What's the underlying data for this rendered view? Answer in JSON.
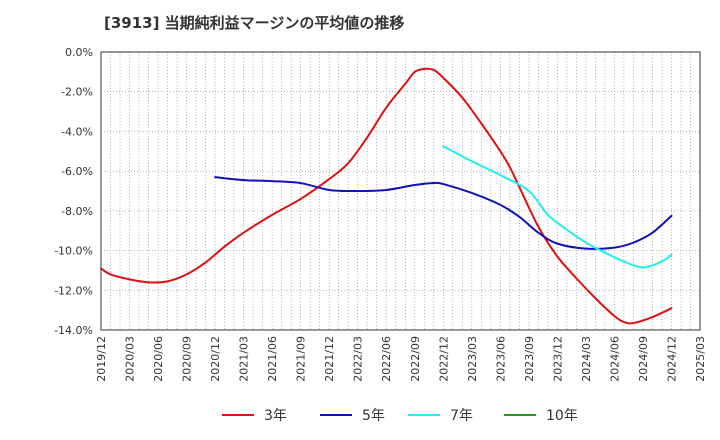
{
  "chart_data": {
    "type": "line",
    "title": "[3913]  当期純利益マージンの平均値の推移",
    "xlabel": "",
    "ylabel": "",
    "ylim": [
      -14,
      0
    ],
    "xlim": [
      "2019/12",
      "2025/03"
    ],
    "grid": true,
    "legend_position": "bottom",
    "y_ticks": [
      "0.0%",
      "-2.0%",
      "-4.0%",
      "-6.0%",
      "-8.0%",
      "-10.0%",
      "-12.0%",
      "-14.0%"
    ],
    "y_tick_values": [
      0,
      -2,
      -4,
      -6,
      -8,
      -10,
      -12,
      -14
    ],
    "x_ticks": [
      "2019/12",
      "2020/03",
      "2020/06",
      "2020/09",
      "2020/12",
      "2021/03",
      "2021/06",
      "2021/09",
      "2021/12",
      "2022/03",
      "2022/06",
      "2022/09",
      "2022/12",
      "2023/03",
      "2023/06",
      "2023/09",
      "2023/12",
      "2024/03",
      "2024/06",
      "2024/09",
      "2024/12",
      "2025/03"
    ],
    "series": [
      {
        "name": "3年",
        "color": "#dd1111",
        "points": [
          [
            "2019/12",
            -10.9
          ],
          [
            "2020/01",
            -11.2
          ],
          [
            "2020/03",
            -11.45
          ],
          [
            "2020/05",
            -11.6
          ],
          [
            "2020/07",
            -11.55
          ],
          [
            "2020/09",
            -11.2
          ],
          [
            "2020/11",
            -10.6
          ],
          [
            "2021/01",
            -9.8
          ],
          [
            "2021/03",
            -9.1
          ],
          [
            "2021/06",
            -8.2
          ],
          [
            "2021/09",
            -7.4
          ],
          [
            "2021/12",
            -6.4
          ],
          [
            "2022/02",
            -5.6
          ],
          [
            "2022/04",
            -4.3
          ],
          [
            "2022/06",
            -2.8
          ],
          [
            "2022/08",
            -1.6
          ],
          [
            "2022/09",
            -1.0
          ],
          [
            "2022/10",
            -0.85
          ],
          [
            "2022/11",
            -0.9
          ],
          [
            "2022/12",
            -1.3
          ],
          [
            "2023/02",
            -2.3
          ],
          [
            "2023/04",
            -3.6
          ],
          [
            "2023/06",
            -5.0
          ],
          [
            "2023/07",
            -5.8
          ],
          [
            "2023/08",
            -6.8
          ],
          [
            "2023/10",
            -8.8
          ],
          [
            "2023/12",
            -10.3
          ],
          [
            "2024/02",
            -11.4
          ],
          [
            "2024/04",
            -12.4
          ],
          [
            "2024/06",
            -13.3
          ],
          [
            "2024/07",
            -13.6
          ],
          [
            "2024/08",
            -13.65
          ],
          [
            "2024/10",
            -13.35
          ],
          [
            "2024/12",
            -12.9
          ]
        ]
      },
      {
        "name": "5年",
        "color": "#1111bb",
        "points": [
          [
            "2020/12",
            -6.3
          ],
          [
            "2021/03",
            -6.45
          ],
          [
            "2021/06",
            -6.5
          ],
          [
            "2021/09",
            -6.6
          ],
          [
            "2021/12",
            -6.95
          ],
          [
            "2022/03",
            -7.0
          ],
          [
            "2022/06",
            -6.95
          ],
          [
            "2022/09",
            -6.7
          ],
          [
            "2022/11",
            -6.6
          ],
          [
            "2022/12",
            -6.65
          ],
          [
            "2023/03",
            -7.1
          ],
          [
            "2023/06",
            -7.7
          ],
          [
            "2023/08",
            -8.3
          ],
          [
            "2023/10",
            -9.1
          ],
          [
            "2023/12",
            -9.65
          ],
          [
            "2024/03",
            -9.9
          ],
          [
            "2024/06",
            -9.85
          ],
          [
            "2024/08",
            -9.6
          ],
          [
            "2024/10",
            -9.1
          ],
          [
            "2024/12",
            -8.25
          ]
        ]
      },
      {
        "name": "7年",
        "color": "#22eeee",
        "points": [
          [
            "2022/12",
            -4.75
          ],
          [
            "2023/03",
            -5.5
          ],
          [
            "2023/06",
            -6.2
          ],
          [
            "2023/09",
            -7.0
          ],
          [
            "2023/11",
            -8.2
          ],
          [
            "2024/01",
            -8.95
          ],
          [
            "2024/03",
            -9.6
          ],
          [
            "2024/05",
            -10.1
          ],
          [
            "2024/07",
            -10.55
          ],
          [
            "2024/09",
            -10.85
          ],
          [
            "2024/11",
            -10.55
          ],
          [
            "2024/12",
            -10.2
          ]
        ]
      },
      {
        "name": "10年",
        "color": "#229922",
        "points": []
      }
    ]
  }
}
